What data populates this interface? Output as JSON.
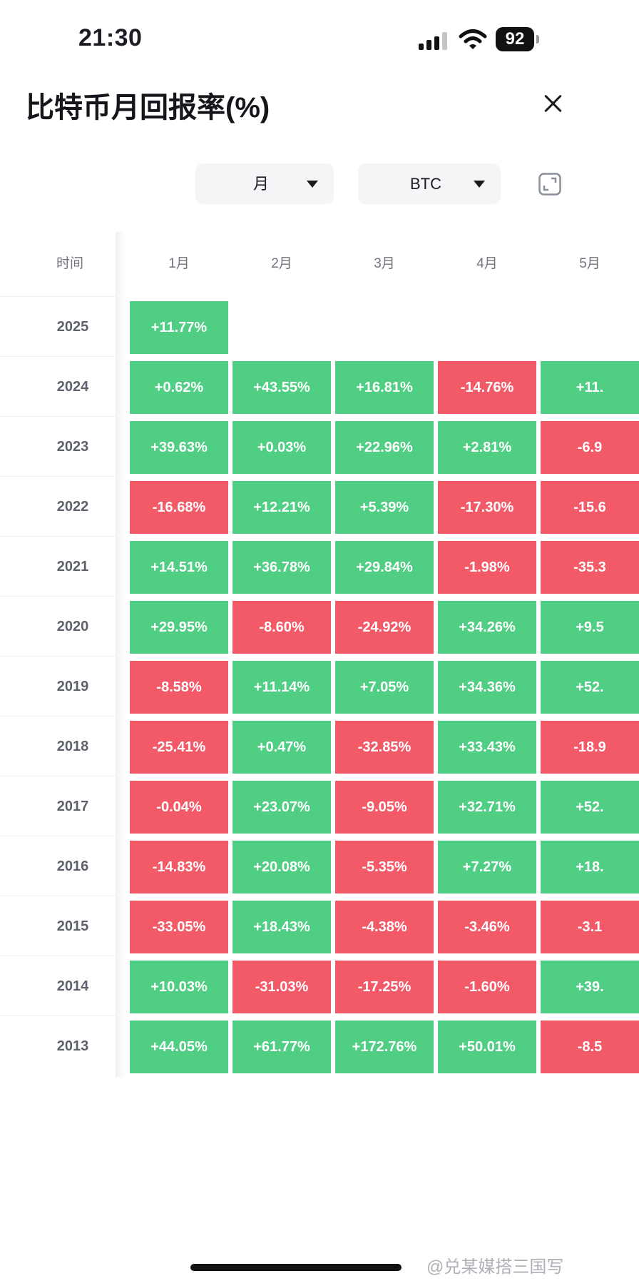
{
  "status_bar": {
    "time": "21:30",
    "battery": "92"
  },
  "header": {
    "title": "比特币月回报率(%)"
  },
  "filters": {
    "period": "月",
    "coin": "BTC"
  },
  "table": {
    "time_header": "时间",
    "months": [
      "1月",
      "2月",
      "3月",
      "4月",
      "5月"
    ],
    "rows": [
      {
        "year": "2025",
        "values": [
          "+11.77%"
        ]
      },
      {
        "year": "2024",
        "values": [
          "+0.62%",
          "+43.55%",
          "+16.81%",
          "-14.76%",
          "+11."
        ]
      },
      {
        "year": "2023",
        "values": [
          "+39.63%",
          "+0.03%",
          "+22.96%",
          "+2.81%",
          "-6.9"
        ]
      },
      {
        "year": "2022",
        "values": [
          "-16.68%",
          "+12.21%",
          "+5.39%",
          "-17.30%",
          "-15.6"
        ]
      },
      {
        "year": "2021",
        "values": [
          "+14.51%",
          "+36.78%",
          "+29.84%",
          "-1.98%",
          "-35.3"
        ]
      },
      {
        "year": "2020",
        "values": [
          "+29.95%",
          "-8.60%",
          "-24.92%",
          "+34.26%",
          "+9.5"
        ]
      },
      {
        "year": "2019",
        "values": [
          "-8.58%",
          "+11.14%",
          "+7.05%",
          "+34.36%",
          "+52."
        ]
      },
      {
        "year": "2018",
        "values": [
          "-25.41%",
          "+0.47%",
          "-32.85%",
          "+33.43%",
          "-18.9"
        ]
      },
      {
        "year": "2017",
        "values": [
          "-0.04%",
          "+23.07%",
          "-9.05%",
          "+32.71%",
          "+52."
        ]
      },
      {
        "year": "2016",
        "values": [
          "-14.83%",
          "+20.08%",
          "-5.35%",
          "+7.27%",
          "+18."
        ]
      },
      {
        "year": "2015",
        "values": [
          "-33.05%",
          "+18.43%",
          "-4.38%",
          "-3.46%",
          "-3.1"
        ]
      },
      {
        "year": "2014",
        "values": [
          "+10.03%",
          "-31.03%",
          "-17.25%",
          "-1.60%",
          "+39."
        ]
      },
      {
        "year": "2013",
        "values": [
          "+44.05%",
          "+61.77%",
          "+172.76%",
          "+50.01%",
          "-8.5"
        ]
      }
    ]
  },
  "colors": {
    "positive": "#4fce84",
    "negative": "#f35a68"
  },
  "watermark": "@兑某媒搭三国写"
}
